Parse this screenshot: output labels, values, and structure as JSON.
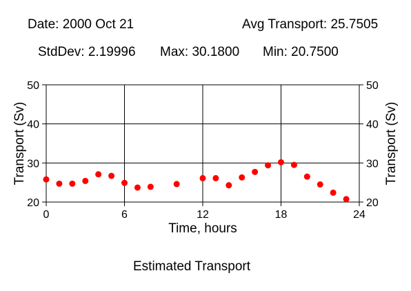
{
  "header": {
    "date_label": "Date: 2000 Oct 21",
    "avg_label": "Avg Transport: 25.7505",
    "stddev_label": "StdDev: 2.19996",
    "max_label": "Max: 30.1800",
    "min_label": "Min: 20.7500"
  },
  "footer": {
    "caption": "Estimated Transport"
  },
  "chart_data": {
    "type": "scatter",
    "title": "",
    "xlabel": "Time, hours",
    "ylabel": "Transport (Sv)",
    "ylabel_right": "Transport (Sv)",
    "xlim": [
      0,
      24
    ],
    "ylim": [
      20,
      50
    ],
    "xticks": [
      0,
      6,
      12,
      18,
      24
    ],
    "yticks": [
      20,
      30,
      40,
      50
    ],
    "grid": true,
    "marker_color": "#ff0000",
    "series": [
      {
        "x": [
          0,
          1,
          2,
          3,
          4,
          5,
          6,
          7,
          8,
          10,
          12,
          13,
          14,
          15,
          16,
          17,
          18,
          19,
          20,
          21,
          22,
          23
        ],
        "y": [
          25.8,
          24.7,
          24.7,
          25.4,
          27.1,
          26.7,
          24.9,
          23.7,
          23.9,
          24.6,
          26.1,
          26.1,
          24.3,
          26.3,
          27.7,
          29.4,
          30.18,
          29.5,
          26.5,
          24.5,
          22.4,
          20.75
        ]
      }
    ]
  }
}
